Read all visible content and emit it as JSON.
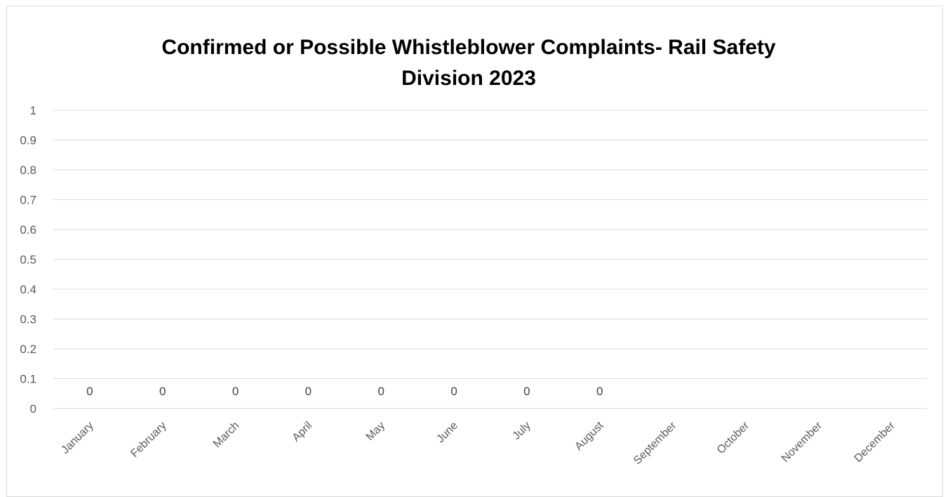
{
  "chart_data": {
    "type": "bar",
    "title": "Confirmed or Possible Whistleblower Complaints- Rail Safety Division 2023",
    "title_lines": [
      "Confirmed or Possible Whistleblower Complaints- Rail Safety",
      "Division 2023"
    ],
    "xlabel": "",
    "ylabel": "",
    "categories": [
      "January",
      "February",
      "March",
      "April",
      "May",
      "June",
      "July",
      "August",
      "September",
      "October",
      "November",
      "December"
    ],
    "values": [
      0,
      0,
      0,
      0,
      0,
      0,
      0,
      0,
      null,
      null,
      null,
      null
    ],
    "data_labels": [
      "0",
      "0",
      "0",
      "0",
      "0",
      "0",
      "0",
      "0",
      "",
      "",
      "",
      ""
    ],
    "ylim": [
      0,
      1
    ],
    "yticks": [
      0,
      0.1,
      0.2,
      0.3,
      0.4,
      0.5,
      0.6,
      0.7,
      0.8,
      0.9,
      1
    ],
    "ytick_labels": [
      "0",
      "0.1",
      "0.2",
      "0.3",
      "0.4",
      "0.5",
      "0.6",
      "0.7",
      "0.8",
      "0.9",
      "1"
    ],
    "grid": true,
    "legend": "none",
    "colors": {
      "gridline": "#d9d9d9",
      "axis_text": "#595959",
      "label_text": "#404040",
      "title_text": "#000000"
    }
  }
}
